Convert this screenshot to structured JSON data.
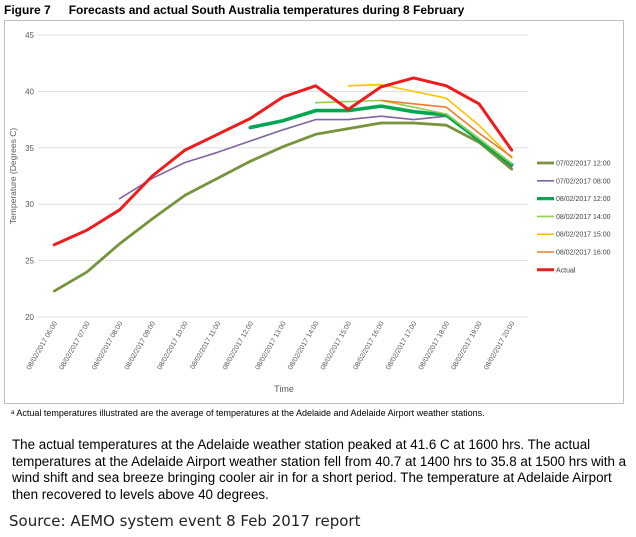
{
  "figure": {
    "number": "Figure 7",
    "title": "Forecasts and actual South Australia temperatures during 8 February"
  },
  "footnote": "ᵃ Actual temperatures illustrated are the average of temperatures at the Adelaide and Adelaide Airport weather stations.",
  "body_text": "The actual temperatures at the Adelaide weather station peaked at 41.6 C at 1600 hrs. The actual temperatures at the Adelaide Airport weather station fell from 40.7 at 1400 hrs to 35.8 at 1500 hrs with a wind shift and sea breeze bringing cooler air in for a short period. The temperature at Adelaide Airport then recovered to levels above 40 degrees.",
  "source": "Source: AEMO system event 8 Feb 2017 report",
  "chart_data": {
    "type": "line",
    "title": "Forecasts and actual South Australia temperatures during 8 February",
    "xlabel": "Time",
    "ylabel": "Temperature (Degrees C)",
    "ylim": [
      20,
      45
    ],
    "yticks": [
      20,
      25,
      30,
      35,
      40,
      45
    ],
    "grid": true,
    "legend_position": "right",
    "categories": [
      "08/02/2017 06:00",
      "08/02/2017 07:00",
      "08/02/2017 08:00",
      "08/02/2017 09:00",
      "08/02/2017 10:00",
      "08/02/2017 11:00",
      "08/02/2017 12:00",
      "08/02/2017 13:00",
      "08/02/2017 14:00",
      "08/02/2017 15:00",
      "08/02/2017 16:00",
      "08/02/2017 17:00",
      "08/02/2017 18:00",
      "08/02/2017 19:00",
      "08/02/2017 20:00"
    ],
    "series": [
      {
        "name": "07/02/2017 12:00",
        "color": "#77933c",
        "width": 2.8,
        "values": [
          22.3,
          24.0,
          26.5,
          28.7,
          30.8,
          32.3,
          33.8,
          35.1,
          36.2,
          36.7,
          37.2,
          37.2,
          37.0,
          35.5,
          33.1
        ]
      },
      {
        "name": "07/02/2017 08:00",
        "color": "#8064a2",
        "width": 1.6,
        "values": [
          null,
          null,
          30.5,
          32.3,
          33.7,
          34.6,
          35.6,
          36.6,
          37.5,
          37.5,
          37.8,
          37.5,
          37.8,
          35.8,
          33.3
        ]
      },
      {
        "name": "08/02/2017 12:00",
        "color": "#00a650",
        "width": 3.6,
        "values": [
          null,
          null,
          null,
          null,
          null,
          null,
          36.8,
          37.4,
          38.3,
          38.3,
          38.7,
          38.2,
          37.9,
          35.7,
          33.5
        ]
      },
      {
        "name": "08/02/2017 14:00",
        "color": "#92d050",
        "width": 1.6,
        "values": [
          null,
          null,
          null,
          null,
          null,
          null,
          null,
          null,
          39.0,
          39.1,
          39.2,
          38.6,
          38.0,
          35.8,
          33.6
        ]
      },
      {
        "name": "08/02/2017 15:00",
        "color": "#ffc000",
        "width": 1.6,
        "values": [
          null,
          null,
          null,
          null,
          null,
          null,
          null,
          null,
          null,
          40.5,
          40.6,
          40.0,
          39.4,
          37.0,
          34.1
        ]
      },
      {
        "name": "08/02/2017 16:00",
        "color": "#f07c2a",
        "width": 1.6,
        "values": [
          null,
          null,
          null,
          null,
          null,
          null,
          null,
          null,
          null,
          null,
          39.2,
          38.9,
          38.6,
          36.3,
          34.2
        ]
      },
      {
        "name": "Actual",
        "color": "#ee1c1c",
        "width": 3.0,
        "values": [
          26.4,
          27.7,
          29.5,
          32.5,
          34.8,
          36.2,
          37.6,
          39.5,
          40.5,
          38.4,
          40.4,
          41.2,
          40.5,
          38.9,
          34.8
        ]
      }
    ]
  }
}
